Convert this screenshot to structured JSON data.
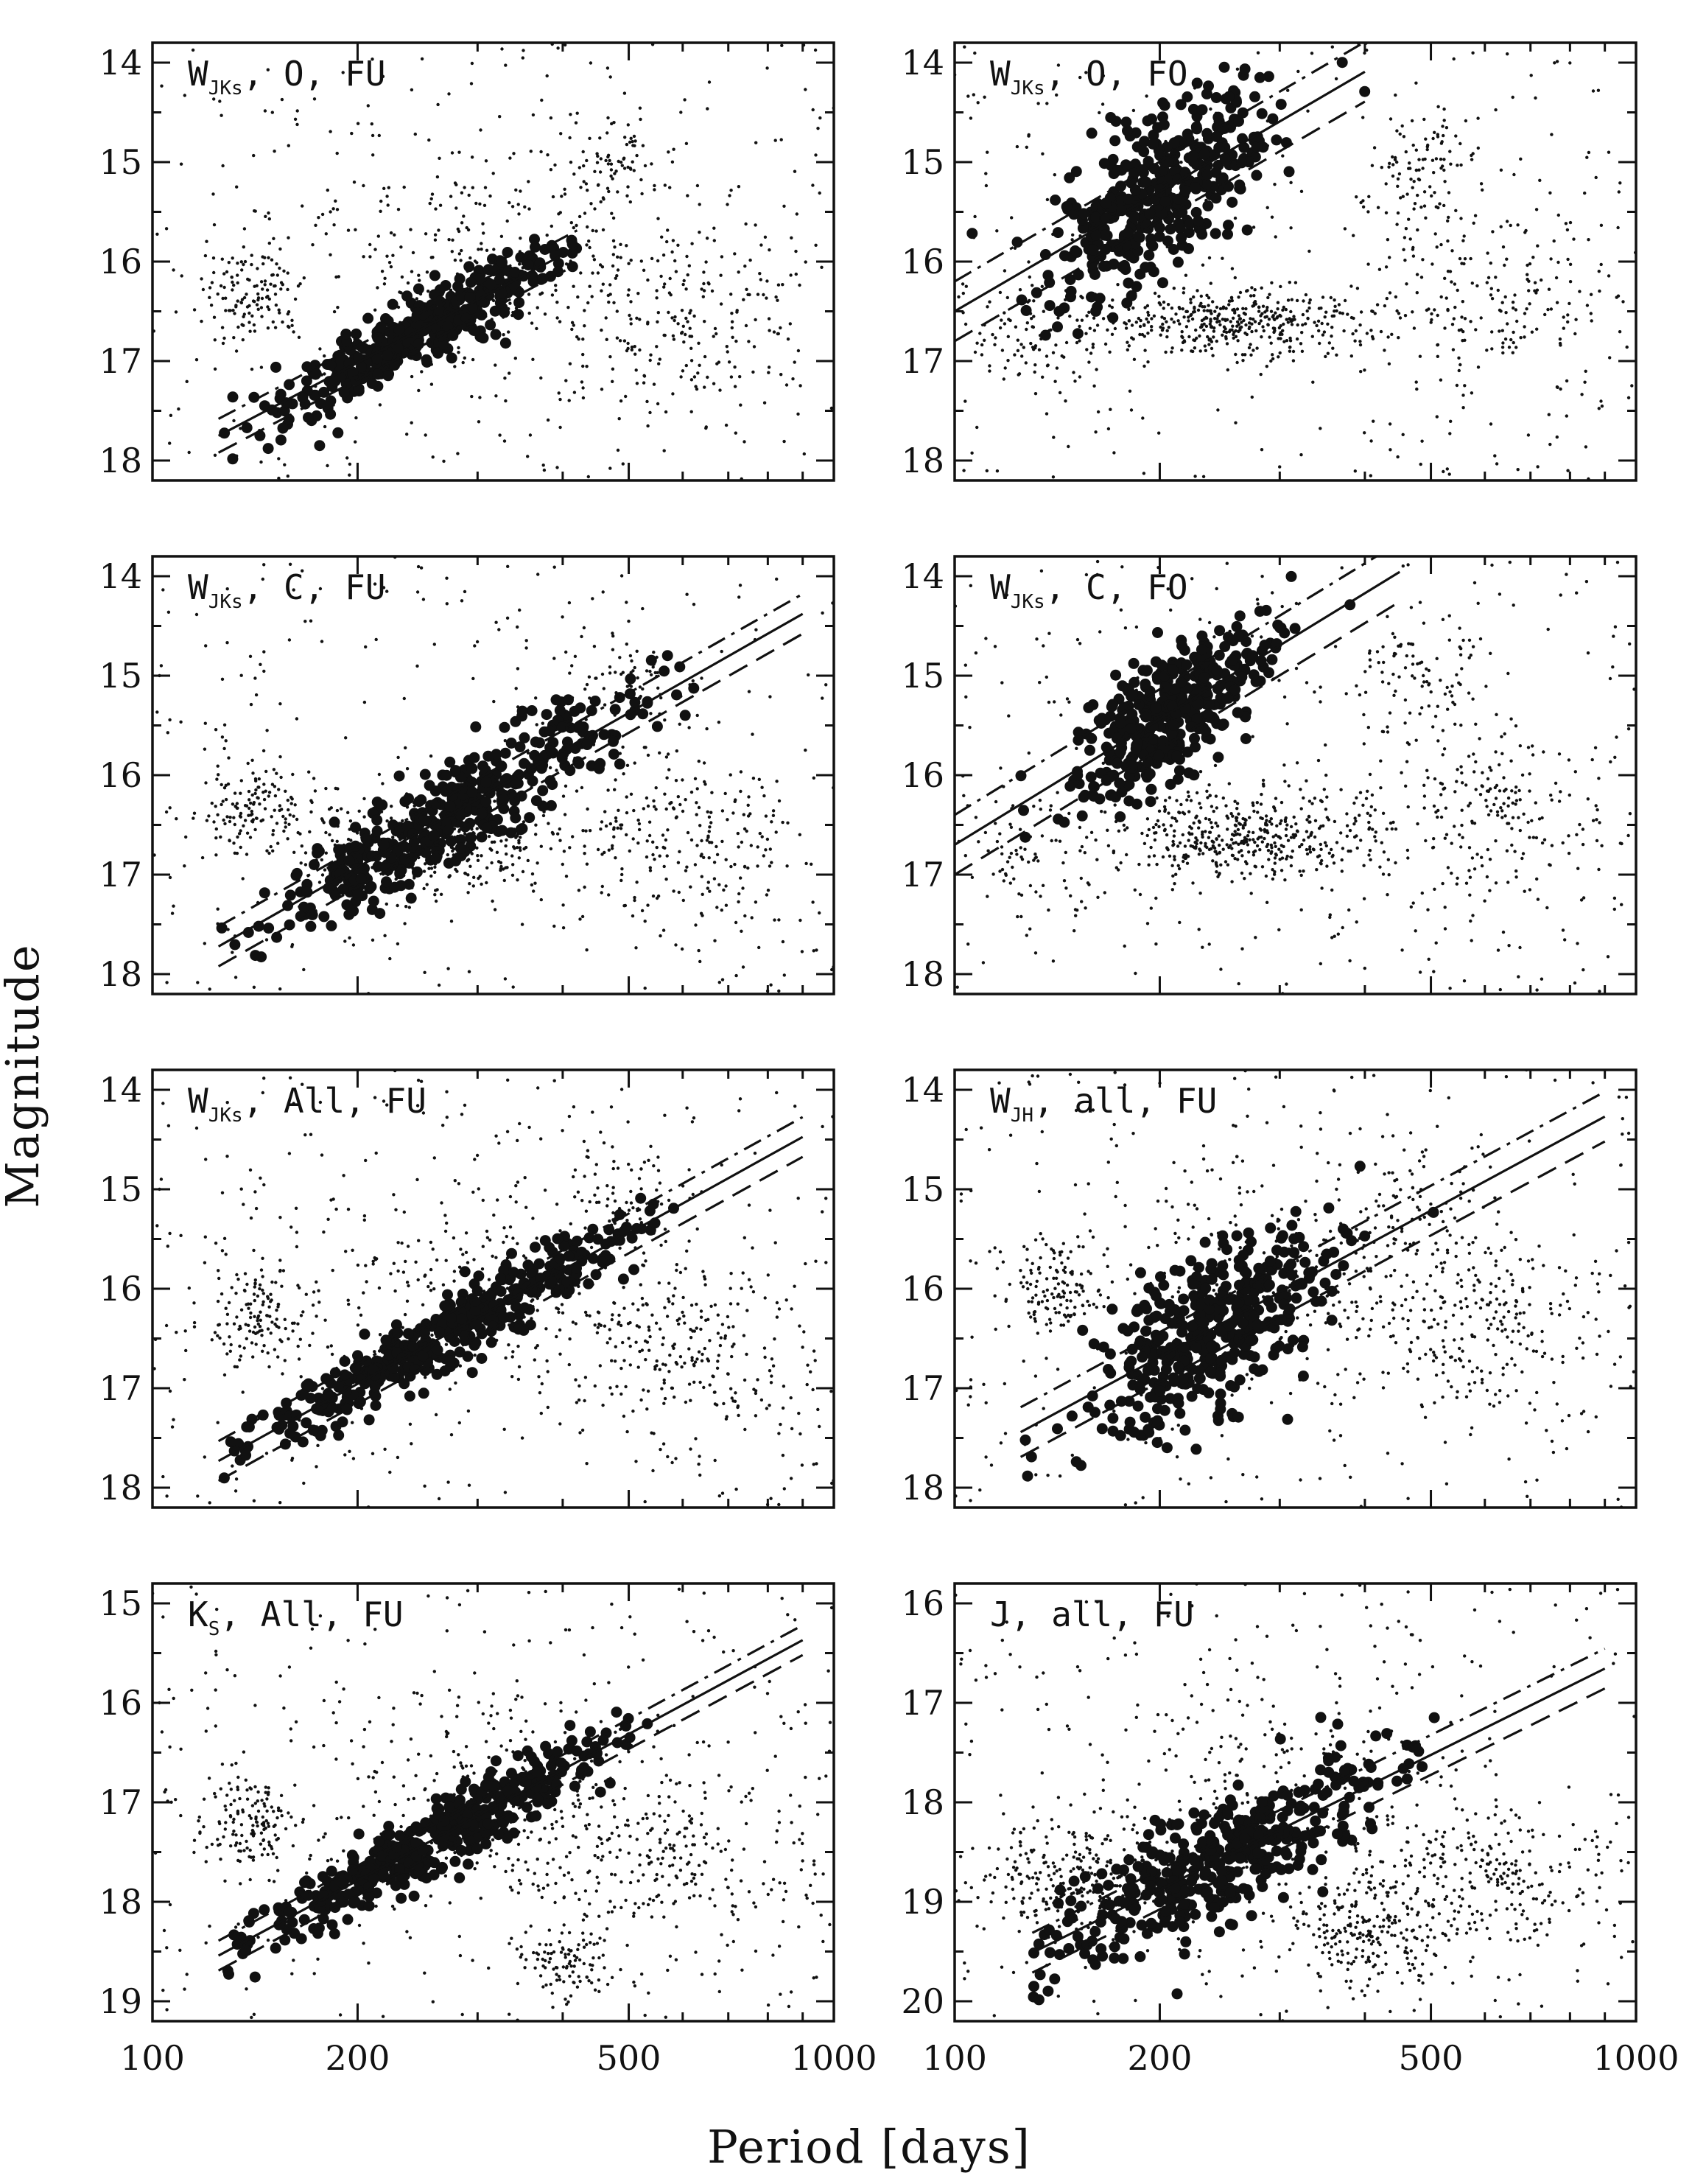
{
  "figure": {
    "xlabel": "Period [days]",
    "ylabel": "Magnitude",
    "x_ticks": [
      100,
      200,
      500,
      1000
    ]
  },
  "chart_data": [
    {
      "type": "scatter",
      "label": {
        "main": "W",
        "sub": "JKs",
        "rest": ", O, FU"
      },
      "x_scale": "log",
      "xlim": [
        100,
        1000
      ],
      "ylim": [
        18.2,
        13.8
      ],
      "y_ticks": [
        14,
        15,
        16,
        17,
        18
      ],
      "fit": {
        "x0": 125,
        "x1": 420,
        "y_at_100": 18.1,
        "slope": -3.6,
        "dash_offsets": [
          -0.17,
          0.17
        ]
      },
      "bright_clump": {
        "center": [
          250,
          16.55
        ],
        "log_period_spread": 0.22,
        "mag_scatter": 0.18
      },
      "field_clouds": [
        {
          "center": [
            140,
            16.3
          ],
          "spread": [
            0.06,
            0.4
          ],
          "n": 120
        },
        {
          "center": [
            300,
            16.0
          ],
          "spread": [
            0.25,
            1.0
          ],
          "n": 260
        },
        {
          "center": [
            600,
            16.5
          ],
          "spread": [
            0.18,
            0.8
          ],
          "n": 220
        },
        {
          "center": [
            480,
            15.0
          ],
          "spread": [
            0.08,
            0.5
          ],
          "n": 80
        }
      ]
    },
    {
      "type": "scatter",
      "label": {
        "main": "W",
        "sub": "JKs",
        "rest": ", O, FO"
      },
      "x_scale": "log",
      "xlim": [
        100,
        1000
      ],
      "ylim": [
        18.2,
        13.8
      ],
      "y_ticks": [
        14,
        15,
        16,
        17,
        18
      ],
      "fit": {
        "x0": 100,
        "x1": 400,
        "y_at_100": 16.5,
        "slope": -4.0,
        "dash_offsets": [
          -0.3,
          0.3
        ]
      },
      "bright_clump": {
        "center": [
          200,
          15.5
        ],
        "log_period_spread": 0.18,
        "mag_scatter": 0.4
      },
      "field_clouds": [
        {
          "center": [
            250,
            16.6
          ],
          "spread": [
            0.16,
            0.3
          ],
          "n": 420
        },
        {
          "center": [
            600,
            16.4
          ],
          "spread": [
            0.18,
            0.8
          ],
          "n": 220
        },
        {
          "center": [
            480,
            15.0
          ],
          "spread": [
            0.08,
            0.5
          ],
          "n": 90
        },
        {
          "center": [
            130,
            16.8
          ],
          "spread": [
            0.08,
            0.5
          ],
          "n": 90
        }
      ]
    },
    {
      "type": "scatter",
      "label": {
        "main": "W",
        "sub": "JKs",
        "rest": ", C, FU"
      },
      "x_scale": "log",
      "xlim": [
        100,
        1000
      ],
      "ylim": [
        18.2,
        13.8
      ],
      "y_ticks": [
        14,
        15,
        16,
        17,
        18
      ],
      "fit": {
        "x0": 125,
        "x1": 900,
        "y_at_100": 18.1,
        "slope": -3.9,
        "dash_offsets": [
          -0.2,
          0.2
        ]
      },
      "bright_clump": {
        "center": [
          280,
          16.2
        ],
        "log_period_spread": 0.3,
        "mag_scatter": 0.25
      },
      "field_clouds": [
        {
          "center": [
            140,
            16.3
          ],
          "spread": [
            0.06,
            0.4
          ],
          "n": 130
        },
        {
          "center": [
            260,
            16.7
          ],
          "spread": [
            0.18,
            0.4
          ],
          "n": 360
        },
        {
          "center": [
            600,
            16.6
          ],
          "spread": [
            0.18,
            0.8
          ],
          "n": 230
        },
        {
          "center": [
            480,
            15.0
          ],
          "spread": [
            0.08,
            0.5
          ],
          "n": 70
        }
      ]
    },
    {
      "type": "scatter",
      "label": {
        "main": "W",
        "sub": "JKs",
        "rest": ", C, FO"
      },
      "x_scale": "log",
      "xlim": [
        100,
        1000
      ],
      "ylim": [
        18.2,
        13.8
      ],
      "y_ticks": [
        14,
        15,
        16,
        17,
        18
      ],
      "fit": {
        "x0": 100,
        "x1": 450,
        "y_at_100": 16.7,
        "slope": -4.2,
        "dash_offsets": [
          -0.3,
          0.3
        ]
      },
      "bright_clump": {
        "center": [
          210,
          15.4
        ],
        "log_period_spread": 0.16,
        "mag_scatter": 0.3
      },
      "field_clouds": [
        {
          "center": [
            260,
            16.6
          ],
          "spread": [
            0.16,
            0.35
          ],
          "n": 420
        },
        {
          "center": [
            600,
            16.4
          ],
          "spread": [
            0.18,
            0.8
          ],
          "n": 230
        },
        {
          "center": [
            480,
            15.0
          ],
          "spread": [
            0.08,
            0.5
          ],
          "n": 90
        },
        {
          "center": [
            130,
            16.8
          ],
          "spread": [
            0.08,
            0.5
          ],
          "n": 80
        }
      ]
    },
    {
      "type": "scatter",
      "label": {
        "main": "W",
        "sub": "JKs",
        "rest": ", All, FU"
      },
      "x_scale": "log",
      "xlim": [
        100,
        1000
      ],
      "ylim": [
        18.2,
        13.8
      ],
      "y_ticks": [
        14,
        15,
        16,
        17,
        18
      ],
      "fit": {
        "x0": 125,
        "x1": 900,
        "y_at_100": 18.1,
        "slope": -3.8,
        "dash_offsets": [
          -0.2,
          0.2
        ]
      },
      "bright_clump": {
        "center": [
          270,
          16.4
        ],
        "log_period_spread": 0.3,
        "mag_scatter": 0.18
      },
      "field_clouds": [
        {
          "center": [
            140,
            16.3
          ],
          "spread": [
            0.06,
            0.4
          ],
          "n": 130
        },
        {
          "center": [
            300,
            16.0
          ],
          "spread": [
            0.25,
            1.0
          ],
          "n": 260
        },
        {
          "center": [
            600,
            16.6
          ],
          "spread": [
            0.18,
            0.8
          ],
          "n": 230
        },
        {
          "center": [
            480,
            15.0
          ],
          "spread": [
            0.08,
            0.5
          ],
          "n": 70
        }
      ]
    },
    {
      "type": "scatter",
      "label": {
        "main": "W",
        "sub": "JH",
        "rest": ", all, FU"
      },
      "x_scale": "log",
      "xlim": [
        100,
        1000
      ],
      "ylim": [
        18.2,
        13.8
      ],
      "y_ticks": [
        14,
        15,
        16,
        17,
        18
      ],
      "fit": {
        "x0": 125,
        "x1": 900,
        "y_at_100": 17.8,
        "slope": -3.7,
        "dash_offsets": [
          -0.25,
          0.25
        ]
      },
      "bright_clump": {
        "center": [
          240,
          16.3
        ],
        "log_period_spread": 0.2,
        "mag_scatter": 0.4
      },
      "field_clouds": [
        {
          "center": [
            140,
            16.0
          ],
          "spread": [
            0.06,
            0.4
          ],
          "n": 130
        },
        {
          "center": [
            300,
            15.8
          ],
          "spread": [
            0.25,
            1.0
          ],
          "n": 260
        },
        {
          "center": [
            600,
            16.4
          ],
          "spread": [
            0.18,
            0.8
          ],
          "n": 230
        },
        {
          "center": [
            480,
            15.3
          ],
          "spread": [
            0.08,
            0.5
          ],
          "n": 70
        }
      ]
    },
    {
      "type": "scatter",
      "label": {
        "main": "K",
        "sub": "S",
        "rest": ", All, FU"
      },
      "x_scale": "log",
      "xlim": [
        100,
        1000
      ],
      "ylim": [
        19.2,
        14.8
      ],
      "y_ticks": [
        15,
        16,
        17,
        18,
        19
      ],
      "fit": {
        "x0": 125,
        "x1": 900,
        "y_at_100": 18.9,
        "slope": -3.7,
        "dash_offsets": [
          -0.15,
          0.15
        ]
      },
      "bright_clump": {
        "center": [
          260,
          17.4
        ],
        "log_period_spread": 0.28,
        "mag_scatter": 0.18
      },
      "field_clouds": [
        {
          "center": [
            140,
            17.2
          ],
          "spread": [
            0.06,
            0.4
          ],
          "n": 140
        },
        {
          "center": [
            300,
            17.0
          ],
          "spread": [
            0.25,
            1.0
          ],
          "n": 260
        },
        {
          "center": [
            600,
            17.6
          ],
          "spread": [
            0.18,
            0.8
          ],
          "n": 230
        },
        {
          "center": [
            400,
            18.6
          ],
          "spread": [
            0.06,
            0.3
          ],
          "n": 100
        }
      ]
    },
    {
      "type": "scatter",
      "label": {
        "main": "J",
        "sub": "",
        "rest": ", all, FU"
      },
      "x_scale": "log",
      "xlim": [
        100,
        1000
      ],
      "ylim": [
        20.2,
        15.8
      ],
      "y_ticks": [
        16,
        17,
        18,
        19,
        20
      ],
      "fit": {
        "x0": 130,
        "x1": 900,
        "y_at_100": 19.9,
        "slope": -3.4,
        "dash_offsets": [
          -0.2,
          0.2
        ]
      },
      "bright_clump": {
        "center": [
          250,
          18.6
        ],
        "log_period_spread": 0.28,
        "mag_scatter": 0.3
      },
      "field_clouds": [
        {
          "center": [
            150,
            18.8
          ],
          "spread": [
            0.12,
            0.5
          ],
          "n": 300
        },
        {
          "center": [
            300,
            17.8
          ],
          "spread": [
            0.25,
            1.0
          ],
          "n": 220
        },
        {
          "center": [
            600,
            18.8
          ],
          "spread": [
            0.18,
            0.6
          ],
          "n": 260
        },
        {
          "center": [
            400,
            19.3
          ],
          "spread": [
            0.1,
            0.4
          ],
          "n": 200
        }
      ]
    }
  ]
}
